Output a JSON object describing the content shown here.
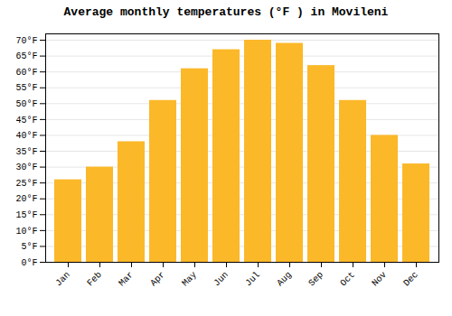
{
  "chart_data": {
    "type": "bar",
    "title": "Average monthly temperatures (°F ) in Movileni",
    "categories": [
      "Jan",
      "Feb",
      "Mar",
      "Apr",
      "May",
      "Jun",
      "Jul",
      "Aug",
      "Sep",
      "Oct",
      "Nov",
      "Dec"
    ],
    "values": [
      26,
      30,
      38,
      51,
      61,
      67,
      70,
      69,
      62,
      51,
      40,
      31
    ],
    "color": "#FBB829",
    "ylim": [
      0,
      72
    ],
    "yticks": [
      {
        "value": 0,
        "label": "0°F"
      },
      {
        "value": 5,
        "label": "5°F"
      },
      {
        "value": 10,
        "label": "10°F"
      },
      {
        "value": 15,
        "label": "15°F"
      },
      {
        "value": 20,
        "label": "20°F"
      },
      {
        "value": 25,
        "label": "25°F"
      },
      {
        "value": 30,
        "label": "30°F"
      },
      {
        "value": 35,
        "label": "35°F"
      },
      {
        "value": 40,
        "label": "40°F"
      },
      {
        "value": 45,
        "label": "45°F"
      },
      {
        "value": 50,
        "label": "50°F"
      },
      {
        "value": 55,
        "label": "55°F"
      },
      {
        "value": 60,
        "label": "60°F"
      },
      {
        "value": 65,
        "label": "65°F"
      },
      {
        "value": 70,
        "label": "70°F"
      }
    ],
    "grid": true
  }
}
